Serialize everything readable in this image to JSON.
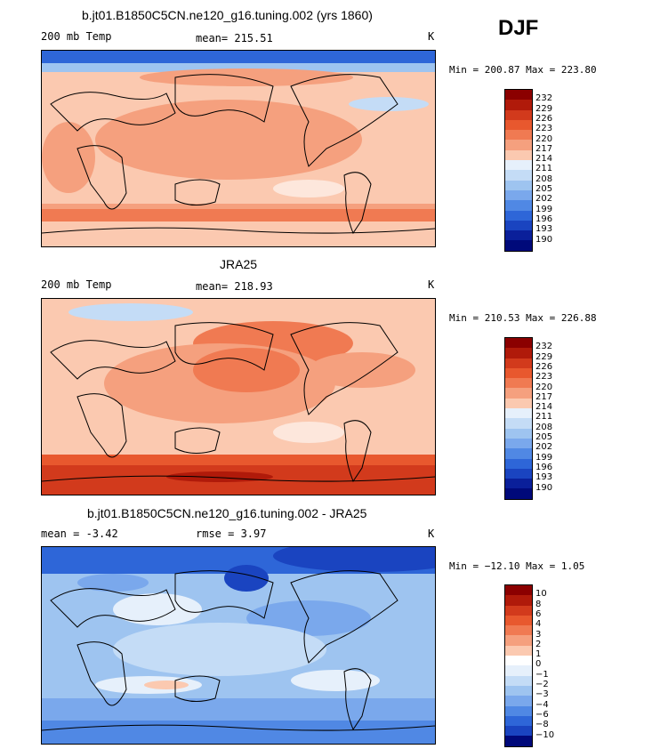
{
  "season": "DJF",
  "panels": [
    {
      "id": "model",
      "title": "b.jt01.B1850C5CN.ne120_g16.tuning.002 (yrs 1860)",
      "left_label": "200 mb Temp",
      "mid_label": "mean= 215.51",
      "right_label": "K",
      "minmax": "Min = 200.87 Max = 223.80",
      "colorbar": {
        "labels": [
          "232",
          "229",
          "226",
          "223",
          "220",
          "217",
          "214",
          "211",
          "208",
          "205",
          "202",
          "199",
          "196",
          "193",
          "190"
        ],
        "colors": [
          "#8b0000",
          "#b01a0a",
          "#d23a1c",
          "#e8582e",
          "#f07a52",
          "#f5a07e",
          "#fbc9b0",
          "#e6f0fb",
          "#c4dcf6",
          "#9ec4f0",
          "#7aa8ec",
          "#5088e4",
          "#2e66d8",
          "#1a44c0",
          "#0a1f9a",
          "#00097a"
        ]
      }
    },
    {
      "id": "obs",
      "title": "JRA25",
      "left_label": "200 mb Temp",
      "mid_label": "mean= 218.93",
      "right_label": "K",
      "minmax": "Min = 210.53 Max = 226.88",
      "colorbar": {
        "labels": [
          "232",
          "229",
          "226",
          "223",
          "220",
          "217",
          "214",
          "211",
          "208",
          "205",
          "202",
          "199",
          "196",
          "193",
          "190"
        ],
        "colors": [
          "#8b0000",
          "#b01a0a",
          "#d23a1c",
          "#e8582e",
          "#f07a52",
          "#f5a07e",
          "#fbc9b0",
          "#e6f0fb",
          "#c4dcf6",
          "#9ec4f0",
          "#7aa8ec",
          "#5088e4",
          "#2e66d8",
          "#1a44c0",
          "#0a1f9a",
          "#00097a"
        ]
      }
    },
    {
      "id": "diff",
      "title": "b.jt01.B1850C5CN.ne120_g16.tuning.002 - JRA25",
      "left_label": "mean =   -3.42",
      "mid_label": "rmse =    3.97",
      "right_label": "K",
      "minmax": "Min = −12.10 Max =    1.05",
      "colorbar": {
        "labels": [
          "10",
          "8",
          "6",
          "4",
          "3",
          "2",
          "1",
          "0",
          "−1",
          "−2",
          "−3",
          "−4",
          "−6",
          "−8",
          "−10"
        ],
        "colors": [
          "#8b0000",
          "#b01a0a",
          "#d23a1c",
          "#e8582e",
          "#f07a52",
          "#f5a07e",
          "#fbc9b0",
          "#ffffff",
          "#e6f0fb",
          "#c4dcf6",
          "#9ec4f0",
          "#7aa8ec",
          "#5088e4",
          "#2e66d8",
          "#1a44c0",
          "#00097a"
        ]
      }
    }
  ]
}
